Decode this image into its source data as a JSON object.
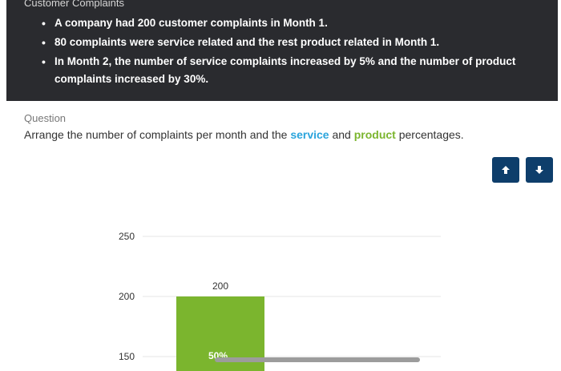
{
  "panel": {
    "title": "Customer Complaints",
    "facts": [
      "A company had 200 customer complaints in Month 1.",
      "80 complaints were service related and the rest product related in Month 1.",
      "In Month 2, the number of service complaints increased by 5% and the number of product complaints increased by 30%."
    ]
  },
  "question": {
    "label": "Question",
    "text_before": "Arrange the number of complaints per month and the",
    "service_word": "service",
    "text_and": "and",
    "product_word": "product",
    "text_after": "percentages."
  },
  "buttons": {
    "up_icon": "arrow-up-icon",
    "down_icon": "arrow-down-icon"
  },
  "colors": {
    "service": "#2aa4dc",
    "product": "#7bb52e",
    "button": "#0e3e6b",
    "panel": "#2a2b2f"
  },
  "chart_data": {
    "type": "bar",
    "y_ticks": [
      250,
      200,
      150
    ],
    "ylim": [
      140,
      250
    ],
    "bars": [
      {
        "value": 200,
        "label": "200",
        "inner_label": "50%",
        "color": "#7bb52e"
      }
    ]
  }
}
